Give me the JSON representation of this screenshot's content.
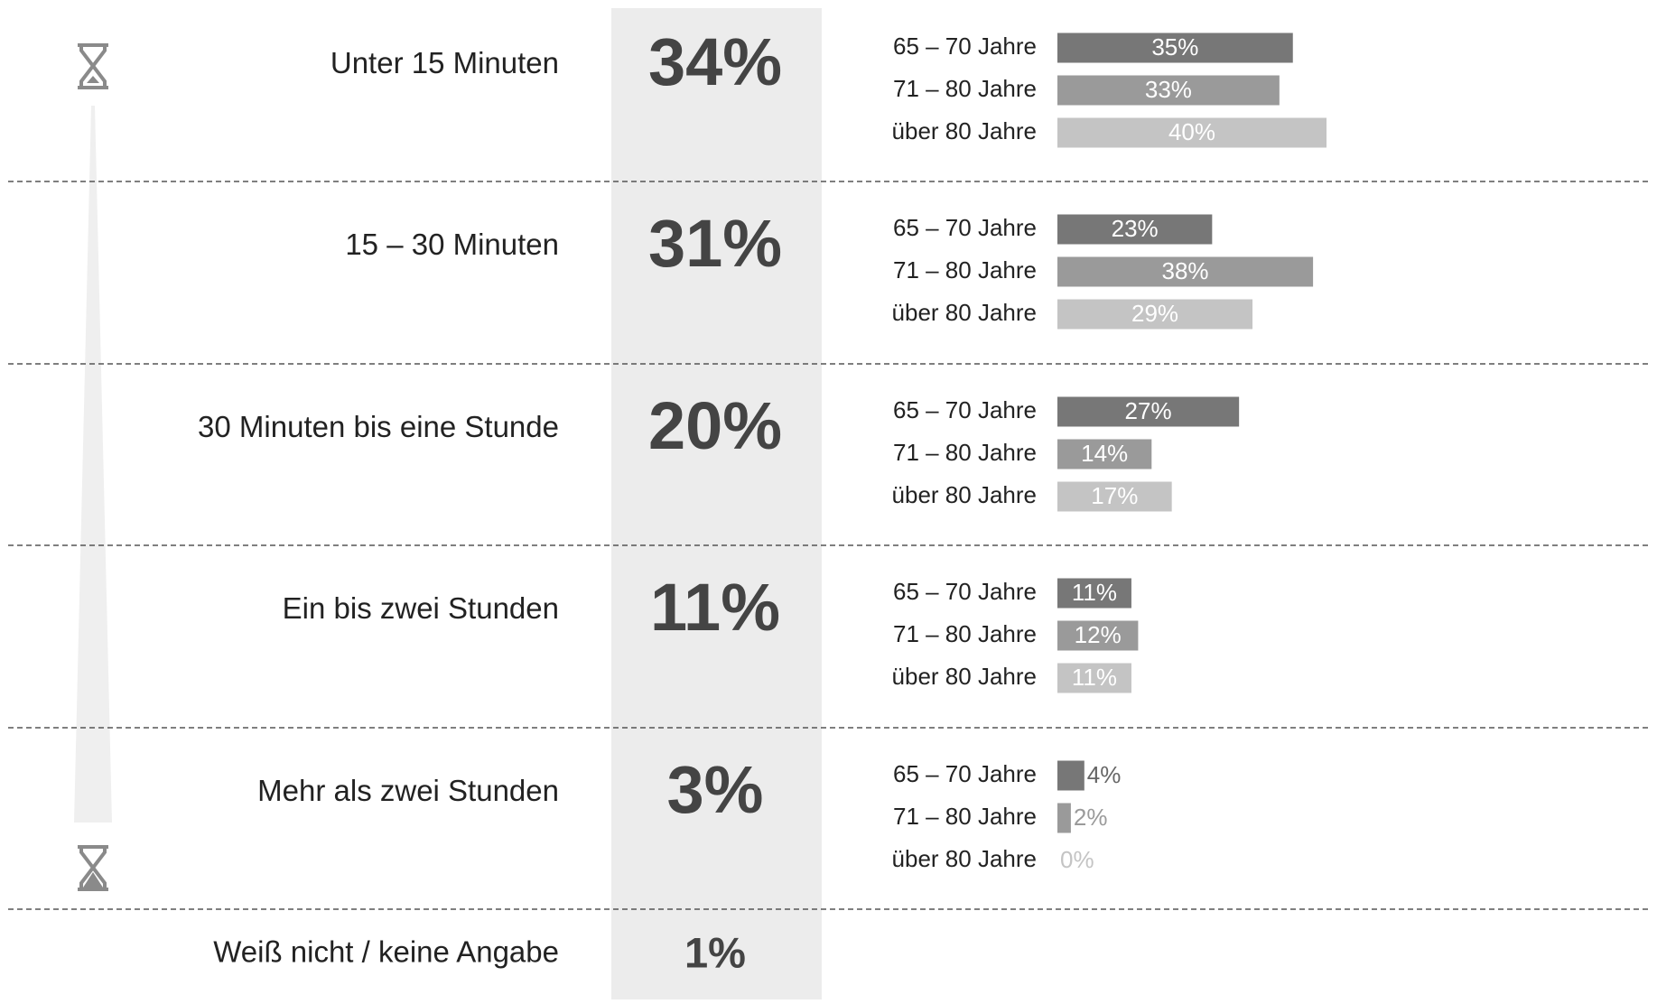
{
  "chart_data": {
    "type": "bar",
    "categories": [
      "Unter 15 Minuten",
      "15 – 30 Minuten",
      "30 Minuten bis eine Stunde",
      "Ein bis zwei Stunden",
      "Mehr als zwei Stunden",
      "Weiß nicht / keine Angabe"
    ],
    "totals": [
      34,
      31,
      20,
      11,
      3,
      1
    ],
    "total_labels": [
      "34%",
      "31%",
      "20%",
      "11%",
      "3%",
      "1%"
    ],
    "xlim": [
      0,
      100
    ],
    "series": [
      {
        "name": "65 – 70 Jahre",
        "color": "#777777",
        "values": [
          35,
          23,
          27,
          11,
          4,
          null
        ],
        "value_labels": [
          "35%",
          "23%",
          "27%",
          "11%",
          "4%",
          null
        ]
      },
      {
        "name": "71 – 80 Jahre",
        "color": "#9a9a9a",
        "values": [
          33,
          38,
          14,
          12,
          2,
          null
        ],
        "value_labels": [
          "33%",
          "38%",
          "14%",
          "12%",
          "2%",
          null
        ]
      },
      {
        "name": "über 80 Jahre",
        "color": "#c4c4c4",
        "values": [
          40,
          29,
          17,
          11,
          0,
          null
        ],
        "value_labels": [
          "40%",
          "29%",
          "17%",
          "11%",
          "0%",
          null
        ]
      }
    ]
  }
}
